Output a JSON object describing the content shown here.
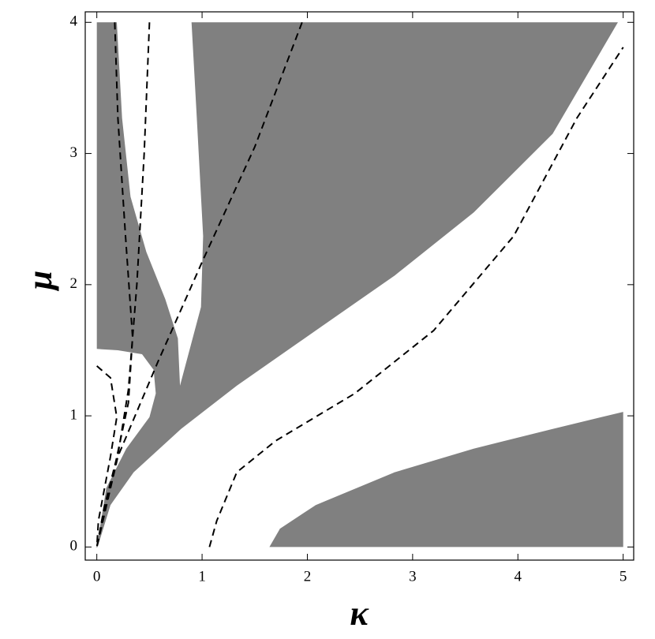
{
  "chart_data": {
    "type": "region",
    "xlabel": "κ",
    "ylabel": "μ",
    "xlim": [
      -0.11,
      5.1
    ],
    "ylim": [
      -0.1,
      4.08
    ],
    "xticks": [
      0,
      1,
      2,
      3,
      4,
      5
    ],
    "yticks": [
      0,
      1,
      2,
      3,
      4
    ],
    "regions": [
      {
        "color": "#808080",
        "x": [
          0,
          0,
          0.19,
          0.24,
          0.32,
          0.47,
          0.65,
          0.77,
          0.79,
          0.99,
          1.01,
          0.95,
          0.9,
          4.95,
          4.33,
          3.58,
          2.83,
          2.08,
          1.33,
          0.8,
          0.35,
          0.13,
          0.015,
          0,
          0.09,
          0.28,
          0.5,
          0.56,
          0.54,
          0.43,
          0.2
        ],
        "y": [
          1.51,
          4,
          4,
          3.27,
          2.67,
          2.25,
          1.89,
          1.59,
          1.23,
          1.83,
          2.37,
          3.27,
          4,
          4,
          3.15,
          2.55,
          2.07,
          1.65,
          1.23,
          0.9,
          0.57,
          0.32,
          0.02,
          0,
          0.45,
          0.75,
          0.99,
          1.17,
          1.35,
          1.47,
          1.5
        ]
      },
      {
        "color": "#808080",
        "x": [
          1.64,
          1.74,
          2.08,
          2.83,
          3.58,
          4.33,
          5,
          5
        ],
        "y": [
          0,
          0.14,
          0.32,
          0.57,
          0.75,
          0.9,
          1.03,
          0
        ]
      }
    ],
    "series": [
      {
        "color": "#000000",
        "x": [
          0.17,
          0.2,
          0.27,
          0.34,
          0.3,
          0.18,
          0.07,
          0
        ],
        "y": [
          4,
          3.27,
          2.4,
          1.6,
          1.1,
          0.65,
          0.3,
          0
        ]
      },
      {
        "color": "#000000",
        "x": [
          0.5,
          0.45,
          0.38,
          0.3,
          0.2,
          0.08,
          0
        ],
        "y": [
          4,
          3,
          2,
          1.2,
          0.7,
          0.3,
          0
        ]
      },
      {
        "color": "#000000",
        "x": [
          1.95,
          1.5,
          1.01,
          0.58,
          0.2,
          0
        ],
        "y": [
          4,
          3.05,
          2.19,
          1.41,
          0.69,
          0
        ]
      },
      {
        "color": "#000000",
        "x": [
          0,
          0.13,
          0.19,
          0.13,
          0.015,
          0
        ],
        "y": [
          1.38,
          1.29,
          0.99,
          0.69,
          0.2,
          0
        ]
      },
      {
        "color": "#000000",
        "x": [
          1.07,
          1.14,
          1.33,
          1.7,
          2.45,
          3.2,
          3.96,
          4.56,
          5
        ],
        "y": [
          0,
          0.2,
          0.57,
          0.81,
          1.17,
          1.65,
          2.37,
          3.27,
          3.81
        ]
      }
    ]
  }
}
